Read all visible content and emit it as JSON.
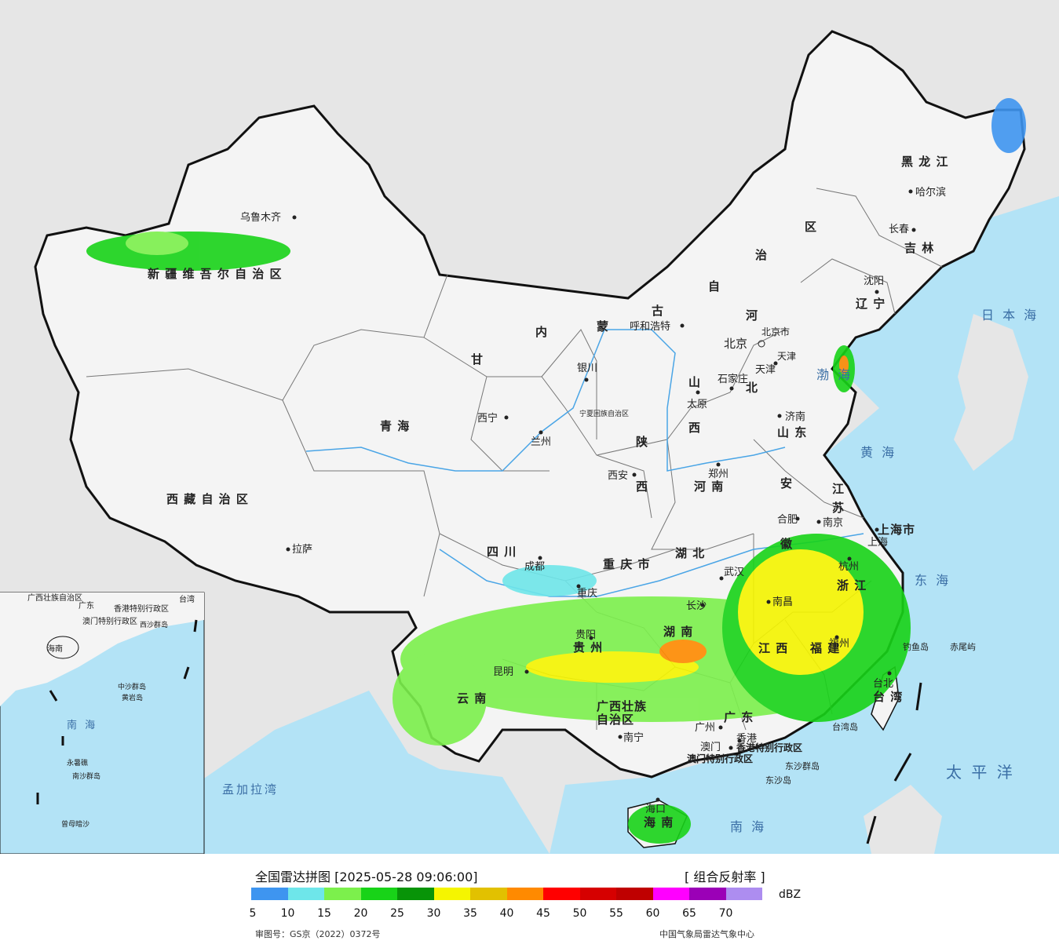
{
  "legend": {
    "title": "全国雷达拼图 [2025-05-28 09:06:00]",
    "product": "[ 组合反射率 ]",
    "unit": "dBZ",
    "ticks": [
      "5",
      "10",
      "15",
      "20",
      "25",
      "30",
      "35",
      "40",
      "45",
      "50",
      "55",
      "60",
      "65",
      "70"
    ],
    "colors": [
      "#3e95f0",
      "#6ee6ea",
      "#7cf04c",
      "#18d318",
      "#089408",
      "#f5f500",
      "#e2c100",
      "#ff8a00",
      "#ff0000",
      "#d60000",
      "#bf0000",
      "#ff00ff",
      "#9b00b7",
      "#ad8df0"
    ],
    "approval": "审图号：GS京（2022）0372号",
    "credit": "中国气象局雷达气象中心"
  },
  "map_colors": {
    "sea": "#b3e3f6",
    "land": "#f4f4f4",
    "outside": "#e6e6e6",
    "border": "#111111"
  },
  "regions": {
    "xinjiang": "新 疆 维 吾 尔 自 治 区",
    "xizang": "西 藏 自 治 区",
    "qinghai": "青 海",
    "gansu": "甘",
    "neimenggu": [
      "内",
      "蒙",
      "古",
      "自",
      "治",
      "区"
    ],
    "heilongjiang": "黑 龙 江",
    "jilin": "吉 林",
    "liaoning": "辽 宁",
    "hebei": "河",
    "hebei2": "北",
    "shanxi": "山",
    "shanxi2": "西",
    "shaanxi": "陕",
    "shaanxi2": "西",
    "henan": "河 南",
    "shandong": "山 东",
    "jiangsu": "江",
    "jiangsu2": "苏",
    "anhui": "安",
    "anhui2": "徽",
    "hubei": "湖 北",
    "sichuan": "四 川",
    "chongqing": "重 庆 市",
    "yunnan": "云 南",
    "guizhou": "贵 州",
    "hunan": "湖 南",
    "jiangxi": "江 西",
    "zhejiang": "浙 江",
    "fujian": "福 建",
    "guangxi": "广西壮族",
    "guangxi2": "自治区",
    "guangdong": "广 东",
    "hainan": "海 南",
    "taiwan": "台 湾",
    "shanghai": "上海市",
    "ningxia": "宁夏回族自治区",
    "beijing_city": "北京市",
    "tianjin_city": "天津",
    "hk": "香港特别行政区",
    "macao": "澳门特别行政区"
  },
  "cities": [
    "乌鲁木齐",
    "拉萨",
    "西宁",
    "兰州",
    "银川",
    "呼和浩特",
    "北京",
    "天津",
    "石家庄",
    "太原",
    "西安",
    "郑州",
    "济南",
    "南京",
    "合肥",
    "上海",
    "杭州",
    "武汉",
    "长沙",
    "南昌",
    "福州",
    "台北",
    "广州",
    "香港",
    "澳门",
    "南宁",
    "海口",
    "贵阳",
    "昆明",
    "成都",
    "重庆",
    "哈尔滨",
    "长春",
    "沈阳"
  ],
  "seas": {
    "japan_sea": "日 本 海",
    "bohai": "渤 海",
    "yellow_sea": "黄 海",
    "east_sea": "东 海",
    "pacific": "太 平 洋",
    "south_sea": "南 海",
    "bengal": "孟加拉湾",
    "inset_south_sea": "南 海"
  },
  "islands": {
    "chiwei": "赤尾屿",
    "diaoyu": "钓鱼岛",
    "taiwan_island": "台湾岛",
    "dongsha_islands": "东沙群岛",
    "dongsha_island": "东沙岛",
    "zhongsha": "中沙群岛",
    "huangyan": "黄岩岛",
    "yongshu": "永暑礁",
    "nansha": "南沙群岛",
    "zengmu": "曾母暗沙",
    "xisha": "西沙群岛"
  },
  "inset_labels": {
    "guangxi": "广西壮族自治区",
    "guangdong": "广东",
    "hk": "香港特别行政区",
    "macao": "澳门特别行政区",
    "taiwan": "台湾",
    "hainan": "海南"
  }
}
